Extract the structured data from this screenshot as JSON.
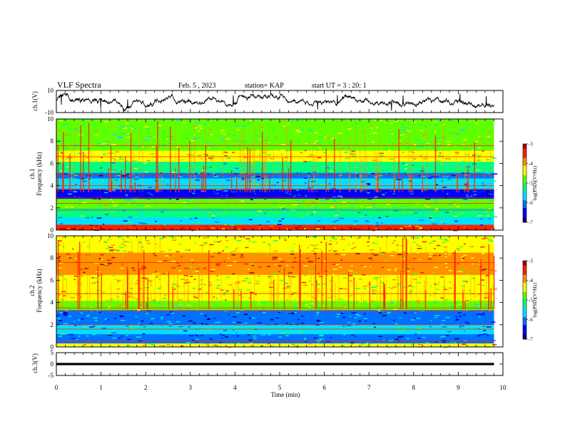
{
  "header": {
    "title": "VLF Spectra",
    "date": "Feb. 5 , 2023",
    "station": "station= KAP",
    "start": "start UT = 3 : 20: 1"
  },
  "colors": {
    "spectrum_scale": [
      "#00007a",
      "#0000ff",
      "#0070ff",
      "#00e0ff",
      "#00ff80",
      "#60ff00",
      "#ffff00",
      "#ff9000",
      "#ff2000",
      "#a00000"
    ]
  },
  "chart_data": [
    {
      "type": "line",
      "panel": "ch1-waveform",
      "ylabel": "ch.1(V)",
      "ylim": [
        -10,
        10
      ],
      "yticks": [
        "10",
        "-10"
      ],
      "xlim": [
        0,
        10
      ],
      "series": [
        {
          "description_only": false,
          "x_range": [
            0,
            9.8
          ],
          "y_typical_range": [
            -6,
            6
          ]
        }
      ]
    },
    {
      "type": "heatmap",
      "panel": "ch1-spectrogram",
      "ylabel": "ch.1\nFrequency (kHz)",
      "ylabel_lines": [
        "ch.1",
        "Frequency (kHz)"
      ],
      "ylim": [
        0,
        10
      ],
      "yticks": [
        "0",
        "2",
        "4",
        "6",
        "8",
        "10"
      ],
      "xlim": [
        0,
        10
      ],
      "data_x_range": [
        0,
        9.8
      ],
      "bands_khz": [
        0.3,
        1.8,
        2.4,
        2.9,
        3.7,
        4.0,
        5.0,
        6.6,
        7.6
      ],
      "colorbar": {
        "label": "log(PSD)(V²/Hz)",
        "range": [
          -7,
          -3
        ],
        "ticks": [
          "-3",
          "-4",
          "-5",
          "-6",
          "-7"
        ]
      }
    },
    {
      "type": "heatmap",
      "panel": "ch2-spectrogram",
      "ylabel_lines": [
        "ch.2",
        "Frequency (kHz)"
      ],
      "ylim": [
        0,
        10
      ],
      "yticks": [
        "0",
        "2",
        "4",
        "6",
        "8",
        "10"
      ],
      "xlim": [
        0,
        10
      ],
      "data_x_range": [
        0,
        9.8
      ],
      "bands_khz": [
        0.5,
        1.6,
        2.0,
        3.2,
        3.5,
        4.8,
        7.6
      ],
      "colorbar": {
        "label": "log(PSD)(V²/Hz)",
        "range": [
          -7,
          -3
        ],
        "ticks": [
          "-3",
          "-4",
          "-5",
          "-6",
          "-7"
        ]
      }
    },
    {
      "type": "line",
      "panel": "ch3-waveform",
      "ylabel": "ch.3(V)",
      "ylim": [
        -5,
        5
      ],
      "yticks": [
        "5",
        "0",
        "-5"
      ],
      "xlim": [
        0,
        10
      ],
      "series": [
        {
          "x_range": [
            0,
            9.8
          ],
          "y_typical_range": [
            -0.5,
            0.5
          ]
        }
      ]
    }
  ],
  "xaxis": {
    "label": "Time (min)",
    "ticks": [
      "0",
      "1",
      "2",
      "3",
      "4",
      "5",
      "6",
      "7",
      "8",
      "9",
      "10"
    ]
  }
}
